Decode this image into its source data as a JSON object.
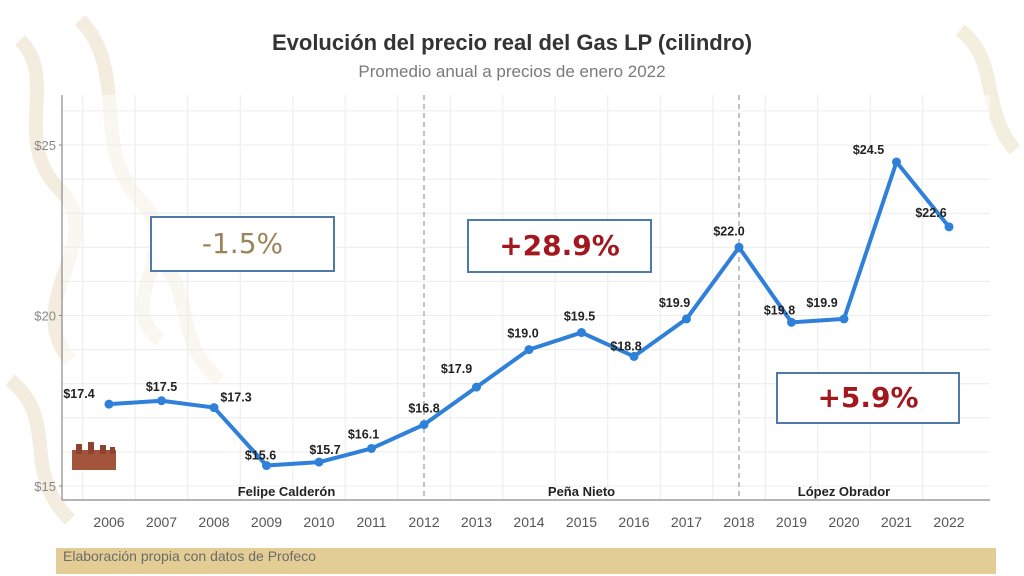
{
  "chart_data": {
    "type": "line",
    "title": "Evolución del precio real del Gas LP (cilindro)",
    "subtitle": "Promedio anual a precios de enero 2022",
    "x": [
      "2006",
      "2007",
      "2008",
      "2009",
      "2010",
      "2011",
      "2012",
      "2013",
      "2014",
      "2015",
      "2016",
      "2017",
      "2018",
      "2019",
      "2020",
      "2021",
      "2022"
    ],
    "values": [
      17.4,
      17.5,
      17.3,
      15.6,
      15.7,
      16.1,
      16.8,
      17.9,
      19.0,
      19.5,
      18.8,
      19.9,
      22.0,
      19.8,
      19.9,
      24.5,
      22.6
    ],
    "data_labels": [
      "$17.4",
      "$17.5",
      "$17.3",
      "$15.6",
      "$15.7",
      "$16.1",
      "$16.8",
      "$17.9",
      "$19.0",
      "$19.5",
      "$18.8",
      "$19.9",
      "$22.0",
      "$19.8",
      "$19.9",
      "$24.5",
      "$22.6"
    ],
    "y_ticks": [
      15,
      20,
      25
    ],
    "y_tick_labels": [
      "$15",
      "$20",
      "$25"
    ],
    "ylim": [
      14.8,
      27
    ],
    "grid": true,
    "color": "#2f80d8",
    "period_dividers": [
      "2012",
      "2018"
    ],
    "periods": [
      {
        "name": "Felipe Calderón",
        "change": "-1.5%",
        "change_color": "#9b8459"
      },
      {
        "name": "Peña Nieto",
        "change": "+28.9%",
        "change_color": "#a3181f"
      },
      {
        "name": "López Obrador",
        "change": "+5.9%",
        "change_color": "#a3181f"
      }
    ]
  },
  "footer": {
    "source": "Elaboración propia con datos de Profeco"
  },
  "colors": {
    "box_border": "#4f79a8",
    "footer_bar": "#e4cd94",
    "decor": "#f3ecdc"
  }
}
